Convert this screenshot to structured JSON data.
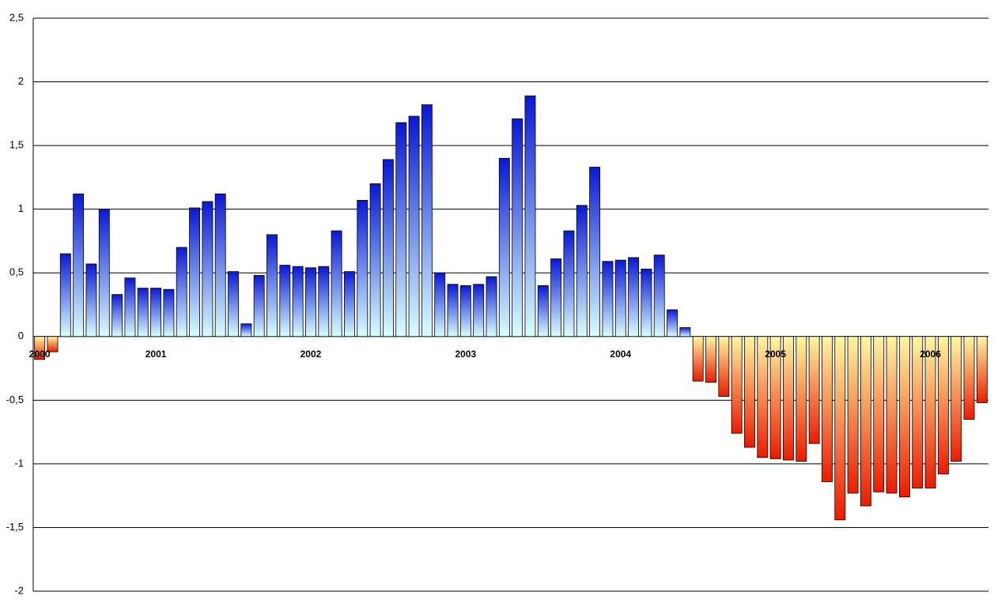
{
  "chart_data": {
    "type": "bar",
    "categories": [
      "2000",
      null,
      null,
      null,
      null,
      null,
      null,
      null,
      null,
      "2001",
      null,
      null,
      null,
      null,
      null,
      null,
      null,
      null,
      null,
      null,
      null,
      "2002",
      null,
      null,
      null,
      null,
      null,
      null,
      null,
      null,
      null,
      null,
      null,
      "2003",
      null,
      null,
      null,
      null,
      null,
      null,
      null,
      null,
      null,
      null,
      null,
      "2004",
      null,
      null,
      null,
      null,
      null,
      null,
      null,
      null,
      null,
      null,
      null,
      "2005",
      null,
      null,
      null,
      null,
      null,
      null,
      null,
      null,
      null,
      null,
      null,
      "2006",
      null,
      null,
      null,
      null
    ],
    "values": [
      -0.18,
      -0.12,
      0.65,
      1.12,
      0.57,
      1.0,
      0.33,
      0.46,
      0.38,
      0.38,
      0.37,
      0.7,
      1.01,
      1.06,
      1.12,
      0.51,
      0.1,
      0.48,
      0.8,
      0.56,
      0.55,
      0.54,
      0.55,
      0.83,
      0.51,
      1.07,
      1.2,
      1.39,
      1.68,
      1.73,
      1.82,
      0.5,
      0.41,
      0.4,
      0.41,
      0.47,
      1.4,
      1.71,
      1.89,
      0.4,
      0.61,
      0.83,
      1.03,
      1.33,
      0.59,
      0.6,
      0.62,
      0.53,
      0.64,
      0.21,
      0.07,
      -0.35,
      -0.36,
      -0.47,
      -0.76,
      -0.87,
      -0.95,
      -0.96,
      -0.97,
      -0.98,
      -0.84,
      -1.14,
      -1.44,
      -1.23,
      -1.33,
      -1.22,
      -1.23,
      -1.26,
      -1.19,
      -1.19,
      -1.08,
      -0.98,
      -0.65,
      -0.52
    ],
    "positive_gradient": [
      "#0a18d6",
      "#d8ffff"
    ],
    "negative_gradient": [
      "#fff7a0",
      "#ee1a00"
    ],
    "ylim": [
      -2,
      2.5
    ],
    "yticks": [
      {
        "value": 2.5,
        "label": "2,5"
      },
      2,
      {
        "value": 1.5,
        "label": "1,5"
      },
      1,
      {
        "value": 0.5,
        "label": "0,5"
      },
      0,
      {
        "value": -0.5,
        "label": "-0,5"
      },
      -1,
      {
        "value": -1.5,
        "label": "-1,5"
      },
      -2
    ],
    "grid": true
  }
}
